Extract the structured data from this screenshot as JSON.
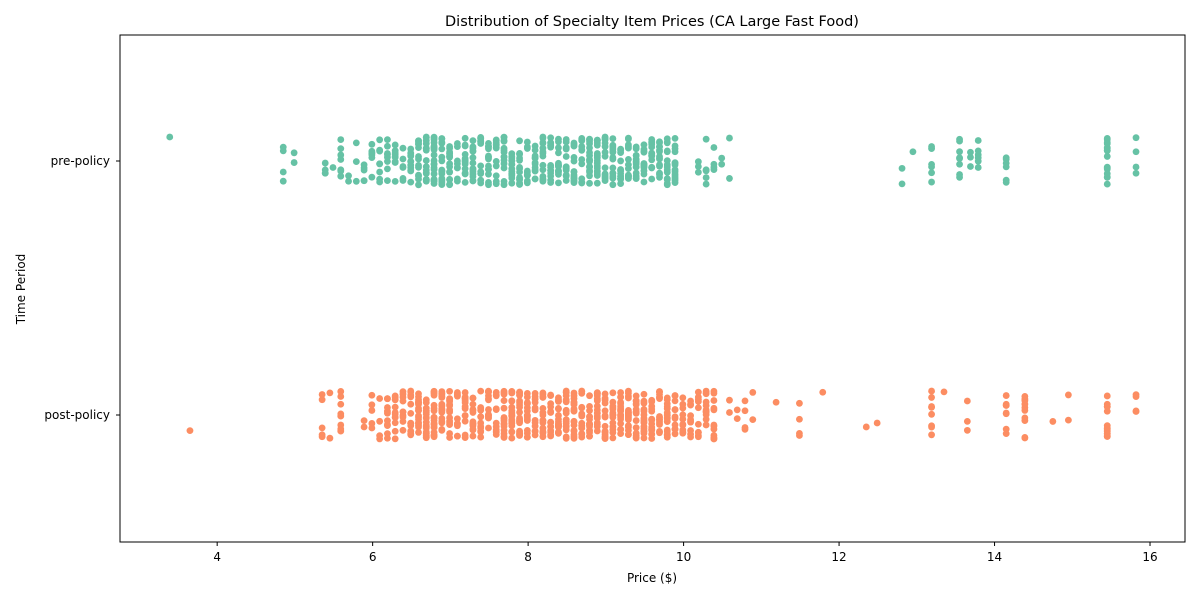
{
  "chart_data": {
    "type": "scatter",
    "subtype": "strip",
    "title": "Distribution of Specialty Item Prices (CA Large Fast Food)",
    "xlabel": "Price ($)",
    "ylabel": "Time Period",
    "xlim": [
      2.75,
      16.45
    ],
    "x_ticks": [
      4,
      6,
      8,
      10,
      12,
      14,
      16
    ],
    "x_tick_labels": [
      "4",
      "6",
      "8",
      "10",
      "12",
      "14",
      "16"
    ],
    "categories": [
      "pre-policy",
      "post-policy"
    ],
    "grid": false,
    "legend": "none",
    "series": [
      {
        "category": "pre-policy",
        "color": "#66c2a5",
        "prices": [
          3.39,
          4.85,
          4.99,
          5.39,
          5.49,
          5.59,
          5.69,
          5.79,
          5.89,
          5.99,
          6.09,
          6.19,
          6.29,
          6.39,
          6.49,
          6.59,
          6.69,
          6.79,
          6.89,
          6.99,
          7.09,
          7.19,
          7.29,
          7.39,
          7.49,
          7.59,
          7.69,
          7.79,
          7.89,
          7.99,
          8.09,
          8.19,
          8.29,
          8.39,
          8.49,
          8.59,
          8.69,
          8.79,
          8.89,
          8.99,
          9.09,
          9.19,
          9.29,
          9.39,
          9.49,
          9.59,
          9.69,
          9.79,
          9.89,
          10.19,
          10.29,
          10.39,
          10.49,
          10.59,
          12.81,
          12.95,
          13.19,
          13.55,
          13.69,
          13.79,
          14.15,
          15.45,
          15.82
        ],
        "counts": [
          1,
          4,
          2,
          4,
          1,
          8,
          2,
          3,
          5,
          7,
          8,
          8,
          9,
          6,
          12,
          14,
          18,
          22,
          18,
          16,
          8,
          14,
          14,
          12,
          14,
          12,
          14,
          14,
          14,
          10,
          12,
          14,
          14,
          14,
          14,
          14,
          12,
          16,
          18,
          14,
          14,
          14,
          14,
          14,
          14,
          16,
          14,
          14,
          14,
          3,
          6,
          4,
          2,
          2,
          2,
          1,
          6,
          8,
          3,
          6,
          6,
          16,
          4
        ]
      },
      {
        "category": "post-policy",
        "color": "#fc8d62",
        "prices": [
          3.65,
          5.35,
          5.45,
          5.59,
          5.89,
          5.99,
          6.09,
          6.19,
          6.29,
          6.39,
          6.49,
          6.59,
          6.69,
          6.79,
          6.89,
          6.99,
          7.09,
          7.19,
          7.29,
          7.39,
          7.49,
          7.59,
          7.69,
          7.79,
          7.89,
          7.99,
          8.09,
          8.19,
          8.29,
          8.39,
          8.49,
          8.59,
          8.69,
          8.79,
          8.89,
          8.99,
          9.09,
          9.19,
          9.29,
          9.39,
          9.49,
          9.59,
          9.69,
          9.79,
          9.89,
          9.99,
          10.09,
          10.19,
          10.29,
          10.39,
          10.59,
          10.69,
          10.79,
          10.89,
          11.19,
          11.49,
          11.79,
          12.35,
          12.49,
          13.19,
          13.35,
          13.65,
          14.15,
          14.39,
          14.75,
          14.95,
          15.45,
          15.82
        ],
        "counts": [
          1,
          5,
          2,
          8,
          2,
          5,
          4,
          10,
          12,
          10,
          14,
          18,
          20,
          22,
          20,
          16,
          10,
          14,
          14,
          12,
          14,
          12,
          16,
          22,
          20,
          16,
          12,
          16,
          14,
          18,
          18,
          18,
          16,
          16,
          18,
          16,
          16,
          18,
          18,
          16,
          16,
          16,
          16,
          16,
          12,
          10,
          10,
          10,
          12,
          12,
          2,
          2,
          4,
          2,
          1,
          4,
          1,
          1,
          1,
          8,
          1,
          3,
          8,
          10,
          1,
          2,
          16,
          4
        ]
      }
    ]
  }
}
